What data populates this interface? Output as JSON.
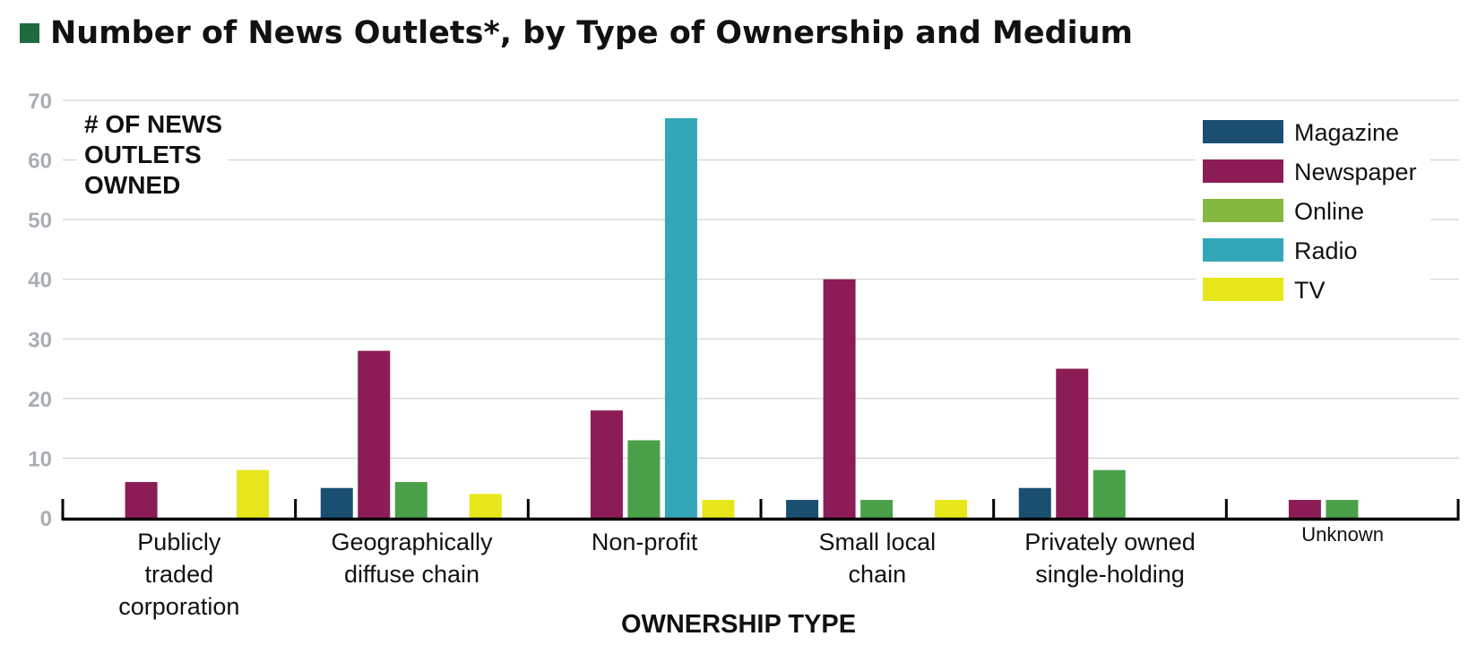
{
  "chart_data": {
    "type": "bar",
    "title": "Number of News Outlets*, by Type of Ownership and Medium",
    "title_marker_color": "#1f6b3f",
    "ylabel_lines": [
      "# OF NEWS",
      "OUTLETS",
      "OWNED"
    ],
    "xlabel": "OWNERSHIP TYPE",
    "ylim": [
      0,
      70
    ],
    "yticks": [
      "0",
      "10",
      "20",
      "30",
      "40",
      "50",
      "60",
      "70"
    ],
    "grid": true,
    "legend_position": "top-right",
    "categories": [
      {
        "lines": [
          "Publicly",
          "traded",
          "corporation"
        ],
        "small": false
      },
      {
        "lines": [
          "Geographically",
          "diffuse chain"
        ],
        "small": false
      },
      {
        "lines": [
          "Non-profit"
        ],
        "small": false
      },
      {
        "lines": [
          "Small local",
          "chain"
        ],
        "small": false
      },
      {
        "lines": [
          "Privately owned",
          "single-holding"
        ],
        "small": false
      },
      {
        "lines": [
          "Unknown"
        ],
        "small": true
      }
    ],
    "series": [
      {
        "name": "Magazine",
        "color": "#1b4f72",
        "values": [
          0,
          5,
          0,
          3,
          5,
          0
        ]
      },
      {
        "name": "Newspaper",
        "color": "#8c1c55",
        "values": [
          6,
          28,
          18,
          40,
          25,
          3
        ]
      },
      {
        "name": "Online",
        "color": "#4ba04a",
        "legend_color": "#85b840",
        "values": [
          0,
          6,
          13,
          3,
          8,
          3
        ]
      },
      {
        "name": "Radio",
        "color": "#33a6b8",
        "values": [
          0,
          0,
          67,
          0,
          0,
          0
        ]
      },
      {
        "name": "TV",
        "color": "#e6e61a",
        "values": [
          8,
          4,
          3,
          3,
          0,
          0
        ]
      }
    ]
  }
}
